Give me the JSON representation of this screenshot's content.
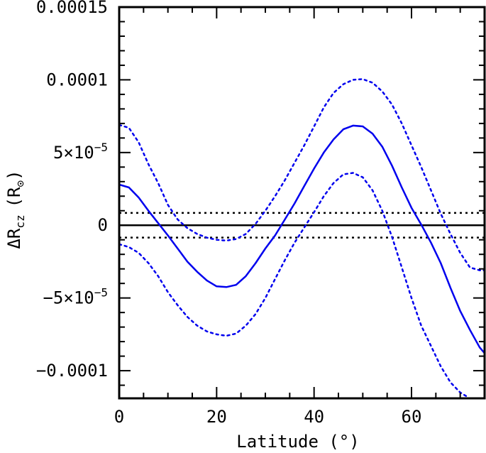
{
  "chart_data": {
    "type": "line",
    "xlabel": "Latitude (°)",
    "ylabel": {
      "delta": "ΔR",
      "subscript": "cz",
      "unit": "(R",
      "unit_close": ")"
    },
    "xlim": [
      0,
      75
    ],
    "ylim": [
      -0.000119,
      0.00015
    ],
    "x_ticks": [
      {
        "value": 0,
        "label": "0"
      },
      {
        "value": 20,
        "label": "20"
      },
      {
        "value": 40,
        "label": "40"
      },
      {
        "value": 60,
        "label": "60"
      }
    ],
    "y_ticks": [
      {
        "value": 0.00015,
        "label": "0.00015"
      },
      {
        "value": 0.0001,
        "label": "0.0001"
      },
      {
        "value": 5e-05,
        "label": "5×10",
        "exp": "−5"
      },
      {
        "value": 0,
        "label": "0"
      },
      {
        "value": -5e-05,
        "label": "−5×10",
        "exp": "−5"
      },
      {
        "value": -0.0001,
        "label": "−0.0001"
      }
    ],
    "grid": false,
    "reference_lines": [
      {
        "y": 0,
        "style": "solid",
        "color": "#000000"
      },
      {
        "y": 8.5e-06,
        "style": "dotted",
        "color": "#000000"
      },
      {
        "y": -8.5e-06,
        "style": "dotted",
        "color": "#000000"
      }
    ],
    "series": [
      {
        "style": "solid",
        "color": "#0000ee",
        "x": [
          0,
          2,
          4,
          6,
          8,
          10,
          12,
          14,
          16,
          18,
          20,
          22,
          24,
          26,
          28,
          30,
          32,
          34,
          36,
          38,
          40,
          42,
          44,
          46,
          48,
          50,
          52,
          54,
          56,
          58,
          60,
          62,
          64,
          66,
          68,
          70,
          72,
          74,
          75
        ],
        "y": [
          2.8e-05,
          2.6e-05,
          1.9e-05,
          1e-05,
          1.5e-06,
          -7e-06,
          -1.6e-05,
          -2.5e-05,
          -3.2e-05,
          -3.8e-05,
          -4.2e-05,
          -4.25e-05,
          -4.1e-05,
          -3.5e-05,
          -2.6e-05,
          -1.6e-05,
          -7e-06,
          4e-06,
          1.5e-05,
          2.7e-05,
          3.9e-05,
          5e-05,
          5.9e-05,
          6.6e-05,
          6.85e-05,
          6.8e-05,
          6.3e-05,
          5.4e-05,
          4.1e-05,
          2.6e-05,
          1.2e-05,
          5e-07,
          -1.2e-05,
          -2.6e-05,
          -4.3e-05,
          -5.9e-05,
          -7.2e-05,
          -8.4e-05,
          -8.8e-05
        ]
      },
      {
        "style": "dotted",
        "color": "#0000ee",
        "x": [
          0,
          2,
          4,
          6,
          8,
          10,
          12,
          14,
          16,
          18,
          20,
          22,
          24,
          26,
          28,
          30,
          32,
          34,
          36,
          38,
          40,
          42,
          44,
          46,
          48,
          50,
          52,
          54,
          56,
          58,
          60,
          62,
          64,
          66,
          68,
          70,
          72,
          74,
          75
        ],
        "y": [
          6.9e-05,
          6.7e-05,
          5.7e-05,
          4.2e-05,
          2.9e-05,
          1.4e-05,
          4e-06,
          -2e-06,
          -6e-06,
          -8.5e-06,
          -1e-05,
          -1.05e-05,
          -9.5e-06,
          -6e-06,
          1e-06,
          1e-05,
          2e-05,
          3.1e-05,
          4.3e-05,
          5.5e-05,
          6.8e-05,
          8.1e-05,
          9.1e-05,
          9.7e-05,
          0.0001,
          0.0001005,
          9.8e-05,
          9.2e-05,
          8.3e-05,
          7e-05,
          5.5e-05,
          4e-05,
          2.4e-05,
          8e-06,
          -6e-06,
          -1.9e-05,
          -2.9e-05,
          -3.1e-05,
          -3.1e-05
        ]
      },
      {
        "style": "dotted",
        "color": "#0000ee",
        "x": [
          0,
          2,
          4,
          6,
          8,
          10,
          12,
          14,
          16,
          18,
          20,
          22,
          24,
          26,
          28,
          30,
          32,
          34,
          36,
          38,
          40,
          42,
          44,
          46,
          48,
          50,
          52,
          54,
          56,
          58,
          60,
          62,
          64,
          66,
          68,
          70,
          71.5
        ],
        "y": [
          -1.3e-05,
          -1.5e-05,
          -1.9e-05,
          -2.6e-05,
          -3.5e-05,
          -4.6e-05,
          -5.5e-05,
          -6.3e-05,
          -6.9e-05,
          -7.3e-05,
          -7.5e-05,
          -7.6e-05,
          -7.45e-05,
          -6.9e-05,
          -6.1e-05,
          -5e-05,
          -3.7e-05,
          -2.4e-05,
          -1.2e-05,
          -1.5e-06,
          9e-06,
          2e-05,
          2.9e-05,
          3.5e-05,
          3.6e-05,
          3.3e-05,
          2.4e-05,
          1e-05,
          -8e-06,
          -2.9e-05,
          -5e-05,
          -6.9e-05,
          -8.3e-05,
          -9.7e-05,
          -0.000108,
          -0.000115,
          -0.000118
        ]
      }
    ]
  }
}
